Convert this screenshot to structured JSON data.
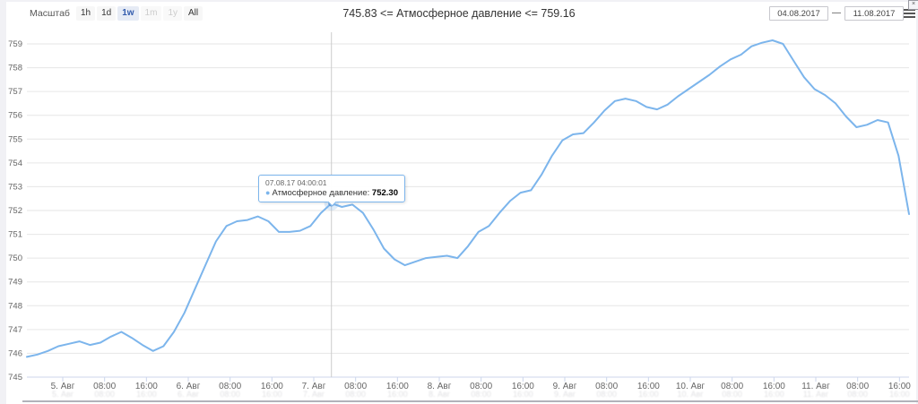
{
  "window": {
    "close_glyph": "×"
  },
  "toolbar": {
    "zoom_label": "Масштаб",
    "buttons": [
      {
        "label": "1h",
        "state": "normal"
      },
      {
        "label": "1d",
        "state": "normal"
      },
      {
        "label": "1w",
        "state": "selected"
      },
      {
        "label": "1m",
        "state": "disabled"
      },
      {
        "label": "1y",
        "state": "disabled"
      },
      {
        "label": "All",
        "state": "normal"
      }
    ],
    "title": "745.83 <= Атмосферное давление <= 759.16",
    "date_from": "04.08.2017",
    "date_separator": "—",
    "date_to": "11.08.2017"
  },
  "tooltip": {
    "timestamp": "07.08.17 04:00:01",
    "marker_glyph": "●",
    "series_label": "Атмосферное давление:",
    "value": "752.30"
  },
  "colors": {
    "line": "#7cb5ec",
    "grid": "#e6e6e6",
    "axis_line": "#ccd6eb",
    "crosshair": "#cccccc",
    "axis_text": "#666666",
    "halo": "rgba(124,181,236,0.25)",
    "marker": "#5f97d4"
  },
  "chart_data": {
    "type": "line",
    "title": "745.83 <= Атмосферное давление <= 759.16",
    "series_name": "Атмосферное давление",
    "value_min": 745.83,
    "value_max": 759.16,
    "ylim": [
      745,
      759
    ],
    "y_ticks": [
      745,
      746,
      747,
      748,
      749,
      750,
      751,
      752,
      753,
      754,
      755,
      756,
      757,
      758,
      759
    ],
    "x_tick_labels": [
      "5. Авг",
      "08:00",
      "16:00",
      "6. Авг",
      "08:00",
      "16:00",
      "7. Авг",
      "08:00",
      "16:00",
      "8. Авг",
      "08:00",
      "16:00",
      "9. Авг",
      "08:00",
      "16:00",
      "10. Авг",
      "08:00",
      "16:00",
      "11. Авг",
      "08:00",
      "16:00"
    ],
    "x_range": [
      "04.08.2017 ≈16:00",
      "11.08.2017 ≈16:00"
    ],
    "sample_interval_hours": 2,
    "grid": true,
    "legend": false,
    "values": [
      745.85,
      745.95,
      746.1,
      746.3,
      746.4,
      746.5,
      746.35,
      746.45,
      746.7,
      746.9,
      746.65,
      746.35,
      746.1,
      746.3,
      746.9,
      747.7,
      748.7,
      749.7,
      750.7,
      751.35,
      751.55,
      751.6,
      751.75,
      751.55,
      751.1,
      751.1,
      751.15,
      751.35,
      751.9,
      752.3,
      752.15,
      752.25,
      751.9,
      751.2,
      750.4,
      749.95,
      749.7,
      749.85,
      750.0,
      750.05,
      750.1,
      750.0,
      750.5,
      751.1,
      751.35,
      751.9,
      752.4,
      752.75,
      752.85,
      753.5,
      754.3,
      754.95,
      755.2,
      755.25,
      755.7,
      756.2,
      756.6,
      756.7,
      756.6,
      756.35,
      756.25,
      756.45,
      756.8,
      757.1,
      757.4,
      757.7,
      758.05,
      758.35,
      758.55,
      758.9,
      759.05,
      759.15,
      759.0,
      758.3,
      757.6,
      757.1,
      756.85,
      756.5,
      755.95,
      755.5,
      755.6,
      755.8,
      755.7,
      754.3,
      751.85
    ],
    "highlight": {
      "index": 29,
      "value": 752.3,
      "time": "07.08.17 04:00:01"
    }
  }
}
